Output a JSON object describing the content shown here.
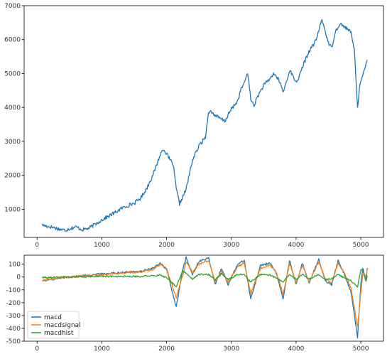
{
  "chart_data": [
    {
      "type": "line",
      "title": "",
      "xlabel": "",
      "ylabel": "",
      "xlim": [
        -200,
        5350
      ],
      "ylim": [
        170,
        7000
      ],
      "xticks": [
        0,
        1000,
        2000,
        3000,
        4000,
        5000
      ],
      "yticks": [
        1000,
        2000,
        3000,
        4000,
        5000,
        6000,
        7000
      ],
      "grid": false,
      "series": [
        {
          "color": "#1f77b4",
          "keypoints": [
            [
              80,
              540
            ],
            [
              150,
              500
            ],
            [
              250,
              470
            ],
            [
              350,
              410
            ],
            [
              430,
              380
            ],
            [
              500,
              430
            ],
            [
              600,
              480
            ],
            [
              700,
              400
            ],
            [
              800,
              440
            ],
            [
              900,
              560
            ],
            [
              1000,
              690
            ],
            [
              1100,
              790
            ],
            [
              1200,
              900
            ],
            [
              1300,
              1020
            ],
            [
              1400,
              1110
            ],
            [
              1500,
              1180
            ],
            [
              1600,
              1330
            ],
            [
              1700,
              1640
            ],
            [
              1800,
              2060
            ],
            [
              1900,
              2600
            ],
            [
              1950,
              2780
            ],
            [
              2000,
              2640
            ],
            [
              2050,
              2460
            ],
            [
              2100,
              2330
            ],
            [
              2150,
              1600
            ],
            [
              2200,
              1160
            ],
            [
              2300,
              1580
            ],
            [
              2400,
              2450
            ],
            [
              2500,
              2860
            ],
            [
              2600,
              3130
            ],
            [
              2650,
              3900
            ],
            [
              2700,
              3850
            ],
            [
              2800,
              3700
            ],
            [
              2900,
              3600
            ],
            [
              3000,
              3950
            ],
            [
              3100,
              4200
            ],
            [
              3150,
              4550
            ],
            [
              3200,
              4700
            ],
            [
              3250,
              5050
            ],
            [
              3300,
              4250
            ],
            [
              3350,
              4050
            ],
            [
              3400,
              4300
            ],
            [
              3500,
              4650
            ],
            [
              3600,
              4850
            ],
            [
              3650,
              5000
            ],
            [
              3700,
              4900
            ],
            [
              3750,
              4750
            ],
            [
              3800,
              4450
            ],
            [
              3850,
              4750
            ],
            [
              3900,
              5100
            ],
            [
              4000,
              4750
            ],
            [
              4050,
              4900
            ],
            [
              4100,
              5200
            ],
            [
              4200,
              5650
            ],
            [
              4300,
              5950
            ],
            [
              4350,
              6250
            ],
            [
              4400,
              6600
            ],
            [
              4450,
              6250
            ],
            [
              4500,
              5900
            ],
            [
              4550,
              5750
            ],
            [
              4600,
              6200
            ],
            [
              4650,
              6400
            ],
            [
              4700,
              6450
            ],
            [
              4800,
              6300
            ],
            [
              4850,
              6200
            ],
            [
              4900,
              5700
            ],
            [
              4930,
              4700
            ],
            [
              4950,
              3950
            ],
            [
              4980,
              4650
            ],
            [
              5050,
              5050
            ],
            [
              5100,
              5400
            ]
          ]
        }
      ]
    },
    {
      "type": "line",
      "title": "",
      "xlabel": "",
      "ylabel": "",
      "xlim": [
        -200,
        5350
      ],
      "ylim": [
        -500,
        170
      ],
      "xticks": [
        0,
        1000,
        2000,
        3000,
        4000,
        5000
      ],
      "yticks": [
        -500,
        -400,
        -300,
        -200,
        -100,
        0,
        100
      ],
      "grid": false,
      "legend_position": "lower-left",
      "series": [
        {
          "name": "macd",
          "color": "#1f77b4",
          "keypoints": [
            [
              80,
              -30
            ],
            [
              400,
              -5
            ],
            [
              700,
              10
            ],
            [
              1000,
              25
            ],
            [
              1300,
              35
            ],
            [
              1600,
              45
            ],
            [
              1800,
              70
            ],
            [
              1900,
              110
            ],
            [
              2000,
              60
            ],
            [
              2150,
              -235
            ],
            [
              2250,
              60
            ],
            [
              2300,
              150
            ],
            [
              2400,
              20
            ],
            [
              2500,
              120
            ],
            [
              2650,
              150
            ],
            [
              2750,
              -60
            ],
            [
              2850,
              70
            ],
            [
              2950,
              -60
            ],
            [
              3100,
              100
            ],
            [
              3200,
              130
            ],
            [
              3300,
              -170
            ],
            [
              3450,
              90
            ],
            [
              3600,
              110
            ],
            [
              3700,
              20
            ],
            [
              3800,
              -170
            ],
            [
              3900,
              130
            ],
            [
              4000,
              -60
            ],
            [
              4100,
              110
            ],
            [
              4200,
              -50
            ],
            [
              4350,
              140
            ],
            [
              4450,
              -30
            ],
            [
              4550,
              -60
            ],
            [
              4650,
              130
            ],
            [
              4750,
              20
            ],
            [
              4850,
              -120
            ],
            [
              4950,
              -470
            ],
            [
              5000,
              -60
            ],
            [
              5030,
              70
            ],
            [
              5080,
              -20
            ],
            [
              5100,
              70
            ]
          ]
        },
        {
          "name": "macdsignal",
          "color": "#ff7f0e",
          "keypoints": [
            [
              80,
              -25
            ],
            [
              400,
              -5
            ],
            [
              700,
              8
            ],
            [
              1000,
              20
            ],
            [
              1300,
              30
            ],
            [
              1600,
              40
            ],
            [
              1800,
              60
            ],
            [
              1900,
              95
            ],
            [
              2000,
              65
            ],
            [
              2150,
              -160
            ],
            [
              2250,
              10
            ],
            [
              2300,
              120
            ],
            [
              2400,
              35
            ],
            [
              2500,
              100
            ],
            [
              2650,
              130
            ],
            [
              2750,
              -40
            ],
            [
              2850,
              45
            ],
            [
              2950,
              -40
            ],
            [
              3100,
              80
            ],
            [
              3200,
              110
            ],
            [
              3300,
              -130
            ],
            [
              3450,
              70
            ],
            [
              3600,
              95
            ],
            [
              3700,
              30
            ],
            [
              3800,
              -130
            ],
            [
              3900,
              105
            ],
            [
              4000,
              -40
            ],
            [
              4100,
              90
            ],
            [
              4200,
              -35
            ],
            [
              4350,
              120
            ],
            [
              4450,
              -10
            ],
            [
              4550,
              -45
            ],
            [
              4650,
              110
            ],
            [
              4750,
              30
            ],
            [
              4850,
              -90
            ],
            [
              4950,
              -390
            ],
            [
              5000,
              -120
            ],
            [
              5030,
              20
            ],
            [
              5080,
              10
            ],
            [
              5100,
              60
            ]
          ]
        },
        {
          "name": "macdhist",
          "color": "#2ca02c",
          "keypoints": [
            [
              80,
              -5
            ],
            [
              400,
              0
            ],
            [
              700,
              3
            ],
            [
              1000,
              5
            ],
            [
              1300,
              5
            ],
            [
              1600,
              5
            ],
            [
              1800,
              10
            ],
            [
              1900,
              15
            ],
            [
              2000,
              -5
            ],
            [
              2150,
              -75
            ],
            [
              2250,
              50
            ],
            [
              2300,
              30
            ],
            [
              2400,
              -15
            ],
            [
              2500,
              20
            ],
            [
              2650,
              20
            ],
            [
              2750,
              -20
            ],
            [
              2850,
              25
            ],
            [
              2950,
              -20
            ],
            [
              3100,
              20
            ],
            [
              3200,
              20
            ],
            [
              3300,
              -40
            ],
            [
              3450,
              20
            ],
            [
              3600,
              15
            ],
            [
              3700,
              -10
            ],
            [
              3800,
              -40
            ],
            [
              3900,
              25
            ],
            [
              4000,
              -20
            ],
            [
              4100,
              20
            ],
            [
              4200,
              -15
            ],
            [
              4350,
              20
            ],
            [
              4450,
              -20
            ],
            [
              4550,
              -15
            ],
            [
              4650,
              20
            ],
            [
              4750,
              -10
            ],
            [
              4850,
              -30
            ],
            [
              4950,
              -80
            ],
            [
              5000,
              60
            ],
            [
              5030,
              50
            ],
            [
              5080,
              -30
            ],
            [
              5100,
              10
            ]
          ]
        }
      ]
    }
  ]
}
